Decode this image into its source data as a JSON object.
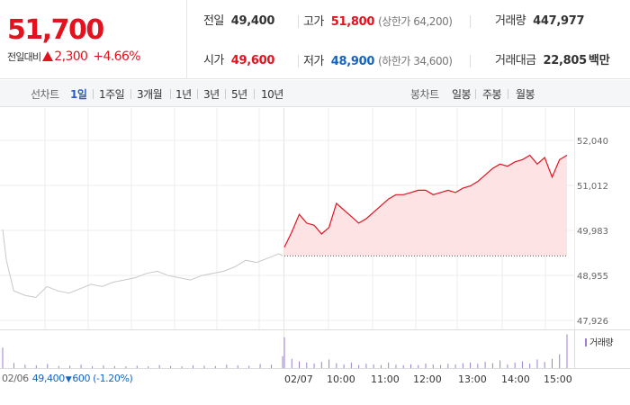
{
  "quote": {
    "price": "51,700",
    "change_label": "전일대비",
    "change_value": "2,300",
    "change_rate": "+4.66%",
    "prev_close_label": "전일",
    "prev_close": "49,400",
    "high_label": "고가",
    "high": "51,800",
    "upper_limit": "(상한가 64,200)",
    "volume_label": "거래량",
    "volume": "447,977",
    "open_label": "시가",
    "open": "49,600",
    "low_label": "저가",
    "low": "48,900",
    "lower_limit": "(하한가 34,600)",
    "amount_label": "거래대금",
    "amount": "22,805",
    "amount_unit": "백만"
  },
  "tabs": {
    "line_label": "선차트",
    "line_tabs": [
      "1일",
      "1주일",
      "3개월",
      "1년",
      "3년",
      "5년",
      "10년"
    ],
    "active_line_tab": "1일",
    "candle_label": "봉차트",
    "candle_tabs": [
      "일봉",
      "주봉",
      "월봉"
    ]
  },
  "prev_day_info": {
    "date": "02/06",
    "close": "49,400",
    "arrow": "▼",
    "change": "600",
    "rate": "(-1.20%)"
  },
  "volume_legend": "거래량",
  "colors": {
    "up": "#e2121f",
    "down": "#1565c0",
    "prev_line": "#c8c8c8",
    "area_fill": "#fde3e4",
    "volume_bar": "#9b7fd0",
    "active_tab": "#2a5cc8"
  },
  "chart_data": {
    "type": "line",
    "y_ticks": [
      52040,
      51012,
      49983,
      48955,
      47926
    ],
    "y_tick_labels": [
      "52,040",
      "51,012",
      "49,983",
      "48,955",
      "47,926"
    ],
    "ylim": [
      47926,
      52040
    ],
    "x_tick_labels": [
      "02/06",
      "02/07",
      "10:00",
      "11:00",
      "12:00",
      "13:00",
      "14:00",
      "15:00"
    ],
    "base_price": 49400,
    "grid": true,
    "series": [
      {
        "day": "02/06",
        "x": [
          "09:00",
          "09:05",
          "09:15",
          "09:30",
          "09:45",
          "10:00",
          "10:15",
          "10:30",
          "10:45",
          "11:00",
          "11:15",
          "11:30",
          "11:45",
          "12:00",
          "12:15",
          "12:30",
          "12:45",
          "13:00",
          "13:15",
          "13:30",
          "13:45",
          "14:00",
          "14:15",
          "14:30",
          "14:45",
          "15:00",
          "15:15",
          "15:20"
        ],
        "values": [
          50000,
          49300,
          48600,
          48500,
          48450,
          48700,
          48600,
          48550,
          48650,
          48750,
          48700,
          48800,
          48850,
          48900,
          49000,
          49050,
          48950,
          48900,
          48850,
          48950,
          49000,
          49050,
          49150,
          49300,
          49250,
          49350,
          49450,
          49400
        ]
      },
      {
        "day": "02/07",
        "x": [
          "09:00",
          "09:10",
          "09:20",
          "09:30",
          "09:40",
          "09:50",
          "10:00",
          "10:10",
          "10:20",
          "10:30",
          "10:40",
          "10:50",
          "11:00",
          "11:10",
          "11:20",
          "11:30",
          "11:40",
          "11:50",
          "12:00",
          "12:10",
          "12:20",
          "12:30",
          "12:40",
          "12:50",
          "13:00",
          "13:10",
          "13:20",
          "13:30",
          "13:40",
          "13:50",
          "14:00",
          "14:10",
          "14:20",
          "14:30",
          "14:40",
          "14:50",
          "15:00",
          "15:10",
          "15:20"
        ],
        "values": [
          49600,
          49950,
          50350,
          50150,
          50100,
          49900,
          50050,
          50600,
          50450,
          50300,
          50150,
          50250,
          50400,
          50550,
          50700,
          50800,
          50800,
          50850,
          50900,
          50900,
          50800,
          50850,
          50900,
          50850,
          50950,
          51000,
          51100,
          51250,
          51400,
          51500,
          51450,
          51550,
          51600,
          51700,
          51500,
          51650,
          51200,
          51600,
          51700
        ]
      }
    ],
    "volume_series": {
      "name": "거래량",
      "unit": "relative",
      "day1": [
        0.6,
        0.15,
        0.1,
        0.08,
        0.12,
        0.06,
        0.07,
        0.1,
        0.05,
        0.08,
        0.06,
        0.05,
        0.07,
        0.05,
        0.09,
        0.06,
        0.05,
        0.08,
        0.07,
        0.06,
        0.1,
        0.08,
        0.07,
        0.12,
        0.1,
        0.35
      ],
      "day2": [
        1.0,
        0.3,
        0.22,
        0.18,
        0.15,
        0.2,
        0.28,
        0.16,
        0.12,
        0.18,
        0.1,
        0.14,
        0.12,
        0.1,
        0.18,
        0.11,
        0.09,
        0.12,
        0.1,
        0.15,
        0.12,
        0.1,
        0.14,
        0.12,
        0.16,
        0.18,
        0.14,
        0.2,
        0.16,
        0.25,
        0.12,
        0.18,
        0.22,
        0.15,
        0.28,
        0.2,
        0.3,
        0.45,
        1.1
      ]
    }
  }
}
